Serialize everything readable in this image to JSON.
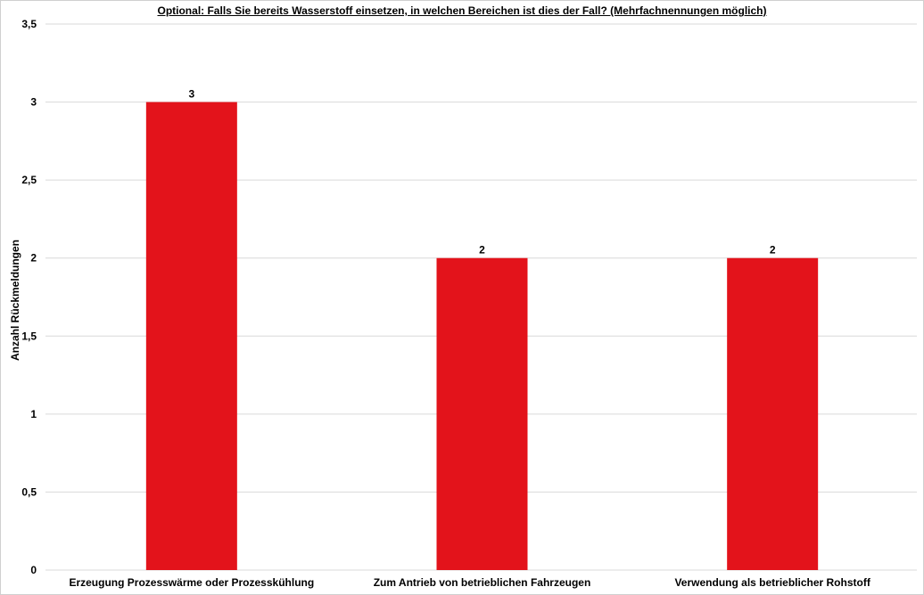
{
  "chart_data": {
    "type": "bar",
    "title": "Optional: Falls Sie bereits Wasserstoff einsetzen, in welchen Bereichen ist dies der Fall? (Mehrfachnennungen möglich)",
    "xlabel": "",
    "ylabel": "Anzahl Rückmeldungen",
    "categories": [
      "Erzeugung Prozesswärme oder Prozesskühlung",
      "Zum Antrieb von betrieblichen Fahrzeugen",
      "Verwendung als betrieblicher Rohstoff"
    ],
    "values": [
      3,
      2,
      2
    ],
    "data_labels": [
      "3",
      "2",
      "2"
    ],
    "ylim": [
      0,
      3.5
    ],
    "yticks": [
      0,
      0.5,
      1,
      1.5,
      2,
      2.5,
      3,
      3.5
    ],
    "ytick_labels": [
      "0",
      "0,5",
      "1",
      "1,5",
      "2",
      "2,5",
      "3",
      "3,5"
    ],
    "grid": true,
    "legend": "none",
    "bar_color": "#e3131b",
    "grid_color": "#d9d9d9"
  }
}
